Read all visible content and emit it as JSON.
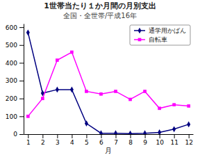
{
  "chart_data": {
    "type": "line",
    "title": "1世帯当たり１か月間の月別支出",
    "subtitle": "全国・全世帯/平成16年",
    "xlabel": "月",
    "x": [
      1,
      2,
      3,
      4,
      5,
      6,
      7,
      8,
      9,
      10,
      11,
      12
    ],
    "series": [
      {
        "name": "通学用かばん",
        "color": "#000080",
        "marker": "diamond",
        "line_style": "solid",
        "values": [
          570,
          230,
          250,
          250,
          60,
          5,
          5,
          3,
          5,
          10,
          28,
          55
        ]
      },
      {
        "name": "自転車",
        "color": "#FF00FF",
        "marker": "square",
        "line_style": "solid",
        "values": [
          100,
          200,
          415,
          460,
          240,
          225,
          240,
          195,
          240,
          145,
          165,
          158
        ]
      }
    ],
    "xlim": [
      0.7,
      12.3
    ],
    "xticks": [
      1,
      2,
      3,
      4,
      5,
      6,
      7,
      8,
      9,
      10,
      11,
      12
    ],
    "ylim": [
      0,
      620
    ],
    "yticks": [
      0,
      100,
      200,
      300,
      400,
      500,
      600
    ],
    "grid": false,
    "legend": "upper-right"
  }
}
